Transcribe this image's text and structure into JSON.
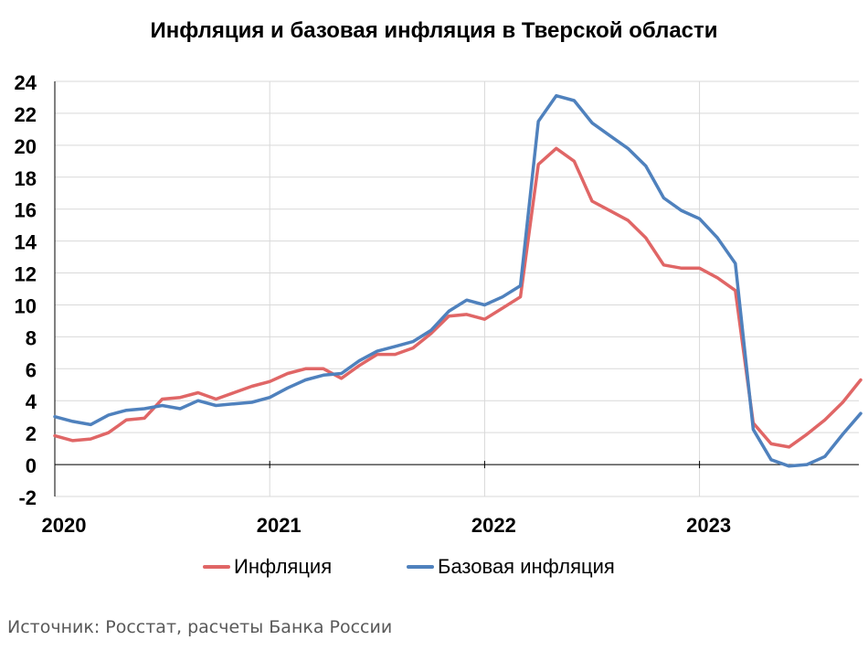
{
  "chart_data": {
    "type": "line",
    "title": "Инфляция и базовая инфляция в Тверской области",
    "xlabel": "",
    "ylabel": "",
    "ylim": [
      -2,
      24
    ],
    "yticks": [
      -2,
      0,
      2,
      4,
      6,
      8,
      10,
      12,
      14,
      16,
      18,
      20,
      22,
      24
    ],
    "ytick_labels": [
      "-2",
      "0",
      "2",
      "4",
      "6",
      "8",
      "10",
      "12",
      "14",
      "16",
      "18",
      "20",
      "22",
      "24"
    ],
    "x_tick_labels": [
      "2020",
      "2021",
      "2022",
      "2023"
    ],
    "x": [
      "2020-01",
      "2020-02",
      "2020-03",
      "2020-04",
      "2020-05",
      "2020-06",
      "2020-07",
      "2020-08",
      "2020-09",
      "2020-10",
      "2020-11",
      "2020-12",
      "2021-01",
      "2021-02",
      "2021-03",
      "2021-04",
      "2021-05",
      "2021-06",
      "2021-07",
      "2021-08",
      "2021-09",
      "2021-10",
      "2021-11",
      "2021-12",
      "2022-01",
      "2022-02",
      "2022-03",
      "2022-04",
      "2022-05",
      "2022-06",
      "2022-07",
      "2022-08",
      "2022-09",
      "2022-10",
      "2022-11",
      "2022-12",
      "2023-01",
      "2023-02",
      "2023-03",
      "2023-04",
      "2023-05",
      "2023-06",
      "2023-07",
      "2023-08",
      "2023-09",
      "2023-10"
    ],
    "grid": true,
    "legend_position": "bottom",
    "series": [
      {
        "name": "Инфляция",
        "color": "#E06666",
        "values": [
          1.8,
          1.5,
          1.6,
          2.0,
          2.8,
          2.9,
          4.1,
          4.2,
          4.5,
          4.1,
          4.5,
          4.9,
          5.2,
          5.7,
          6.0,
          6.0,
          5.4,
          6.2,
          6.9,
          6.9,
          7.3,
          8.2,
          9.3,
          9.4,
          9.1,
          9.8,
          10.5,
          18.8,
          19.8,
          19.0,
          16.5,
          15.9,
          15.3,
          14.2,
          12.5,
          12.3,
          12.3,
          11.7,
          10.9,
          2.6,
          1.3,
          1.1,
          1.9,
          2.8,
          3.9,
          5.3
        ]
      },
      {
        "name": "Базовая инфляция",
        "color": "#4F81BD",
        "values": [
          3.0,
          2.7,
          2.5,
          3.1,
          3.4,
          3.5,
          3.7,
          3.5,
          4.0,
          3.7,
          3.8,
          3.9,
          4.2,
          4.8,
          5.3,
          5.6,
          5.7,
          6.5,
          7.1,
          7.4,
          7.7,
          8.4,
          9.6,
          10.3,
          10.0,
          10.5,
          11.2,
          21.5,
          23.1,
          22.8,
          21.4,
          20.6,
          19.8,
          18.7,
          16.7,
          15.9,
          15.4,
          14.2,
          12.6,
          2.2,
          0.3,
          -0.1,
          0.0,
          0.5,
          1.9,
          3.2
        ]
      }
    ]
  },
  "source": "Источник: Росстат, расчеты Банка России"
}
